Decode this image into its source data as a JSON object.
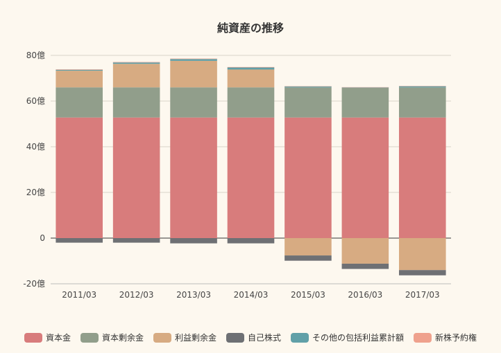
{
  "chart_data": {
    "type": "bar",
    "stacked": true,
    "title": "純資産の推移",
    "categories": [
      "2011/03",
      "2012/03",
      "2013/03",
      "2014/03",
      "2015/03",
      "2016/03",
      "2017/03"
    ],
    "y_ticks": [
      "80億",
      "60億",
      "40億",
      "20億",
      "0",
      "-20億"
    ],
    "y_tick_values": [
      80,
      60,
      40,
      20,
      0,
      -20
    ],
    "ylim": [
      -20,
      80
    ],
    "grid": true,
    "legend_position": "bottom",
    "series": [
      {
        "name": "資本金",
        "color": "#d87c7c",
        "values": [
          52.8,
          52.8,
          52.8,
          52.8,
          52.8,
          52.8,
          52.8
        ]
      },
      {
        "name": "資本剰余金",
        "color": "#919e8b",
        "values": [
          13.2,
          13.2,
          13.2,
          13.2,
          13.2,
          13.0,
          13.2
        ]
      },
      {
        "name": "利益剰余金",
        "color": "#d7ab82",
        "values": [
          7.3,
          10.3,
          11.6,
          7.8,
          -7.6,
          -11.2,
          -14.0
        ]
      },
      {
        "name": "自己株式",
        "color": "#6e7074",
        "values": [
          -2.0,
          -2.0,
          -2.3,
          -2.3,
          -2.3,
          -2.3,
          -2.3
        ]
      },
      {
        "name": "その他の包括利益累計額",
        "color": "#61a0a8",
        "values": [
          0.4,
          0.6,
          0.8,
          0.9,
          0.4,
          0.2,
          0.5
        ]
      },
      {
        "name": "新株予約権",
        "color": "#efa18d",
        "values": [
          0.2,
          0.2,
          0.2,
          0.2,
          0.1,
          0.1,
          0.1
        ]
      }
    ]
  }
}
